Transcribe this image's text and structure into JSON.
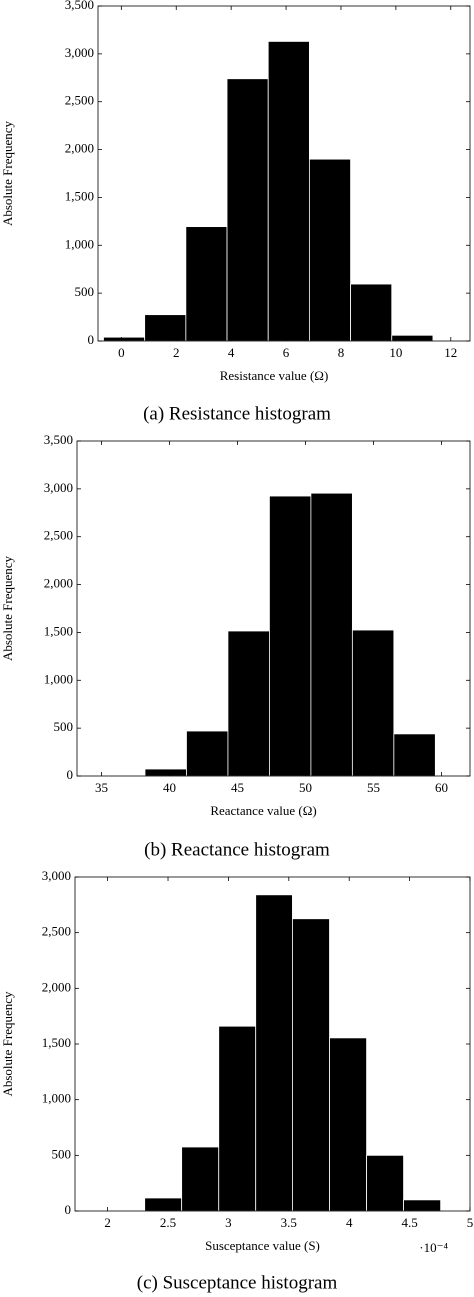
{
  "chart_data": [
    {
      "type": "histogram",
      "caption": "(a) Resistance histogram",
      "xlabel": "Resistance value (Ω)",
      "ylabel": "Absolute Frequency",
      "bins": [
        -0.65,
        0.85,
        2.35,
        3.85,
        5.35,
        6.85,
        8.35,
        9.85,
        11.35
      ],
      "values": [
        40,
        275,
        1195,
        2740,
        3130,
        1900,
        595,
        60
      ],
      "color": "#000000",
      "xlim": [
        -0.85,
        12.7
      ],
      "xticks": [
        0,
        2,
        4,
        6,
        8,
        10,
        12
      ],
      "ylim": [
        0,
        3500
      ],
      "yticks": [
        0,
        500,
        {
          "value": 1000,
          "label": "1,000"
        },
        {
          "value": 1500,
          "label": "1,500"
        },
        {
          "value": 2000,
          "label": "2,000"
        },
        {
          "value": 2500,
          "label": "2,500"
        },
        {
          "value": 3000,
          "label": "3,000"
        },
        {
          "value": 3500,
          "label": "3,500"
        }
      ]
    },
    {
      "type": "histogram",
      "caption": "(b) Reactance histogram",
      "xlabel": "Reactance value (Ω)",
      "ylabel": "Absolute Frequency",
      "bins": [
        35.15,
        38.2,
        41.25,
        44.3,
        47.35,
        50.4,
        53.45,
        56.5,
        59.55
      ],
      "values": [
        5,
        73,
        470,
        1515,
        2925,
        2955,
        1525,
        440
      ],
      "color": "#000000",
      "xlim": [
        33.2,
        62.1
      ],
      "xticks": [
        35,
        40,
        45,
        50,
        55,
        60
      ],
      "ylim": [
        0,
        3500
      ],
      "yticks": [
        0,
        500,
        {
          "value": 1000,
          "label": "1,000"
        },
        {
          "value": 1500,
          "label": "1,500"
        },
        {
          "value": 2000,
          "label": "2,000"
        },
        {
          "value": 2500,
          "label": "2,500"
        },
        {
          "value": 3000,
          "label": "3,000"
        },
        {
          "value": 3500,
          "label": "3,500"
        }
      ]
    },
    {
      "type": "histogram",
      "caption": "(c) Susceptance histogram",
      "xlabel": "Susceptance value (S)",
      "ylabel": "Absolute Frequency",
      "x_multiplier": "·10⁻⁴",
      "bins": [
        2.0,
        2.307,
        2.613,
        2.92,
        3.226,
        3.53,
        3.837,
        4.144,
        4.45,
        4.757
      ],
      "values": [
        5,
        117,
        575,
        1660,
        2840,
        2625,
        1555,
        500,
        100
      ],
      "color": "#000000",
      "xlim": [
        1.73,
        5.0
      ],
      "xticks": [
        2,
        2.5,
        3,
        3.5,
        4,
        4.5,
        5
      ],
      "ylim": [
        0,
        3000
      ],
      "yticks": [
        0,
        500,
        {
          "value": 1000,
          "label": "1,000"
        },
        {
          "value": 1500,
          "label": "1,500"
        },
        {
          "value": 2000,
          "label": "2,000"
        },
        {
          "value": 2500,
          "label": "2,500"
        },
        {
          "value": 3000,
          "label": "3,000"
        }
      ]
    }
  ]
}
